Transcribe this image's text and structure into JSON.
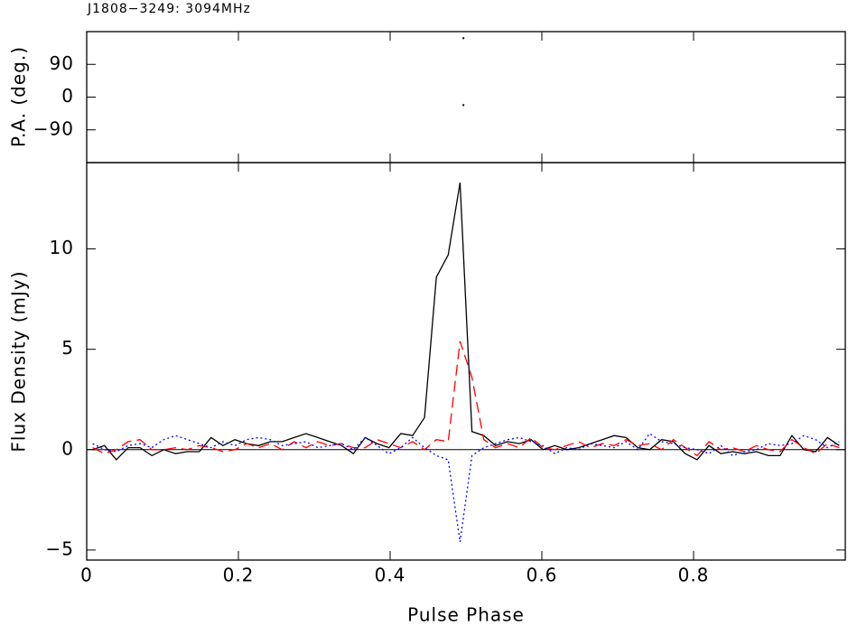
{
  "chart_data": [
    {
      "type": "scatter",
      "title": "J1808−3249: 3094MHz",
      "ylabel": "P.A. (deg.)",
      "x": [
        0.4966,
        0.4966
      ],
      "values": [
        -22,
        162
      ],
      "color": "#000000",
      "xlim": [
        0,
        1
      ],
      "ylim": [
        -180,
        180
      ],
      "yticks": [
        {
          "value": -90,
          "label": "−90"
        },
        0,
        90
      ]
    },
    {
      "type": "line",
      "xlabel": "Pulse Phase",
      "ylabel": "Flux Density (mJy)",
      "xlim": [
        0,
        1
      ],
      "xticks": [
        0,
        0.2,
        0.4,
        0.6,
        0.8
      ],
      "ylim": [
        -5.5,
        14.3
      ],
      "yticks": [
        {
          "value": -5,
          "label": "−5"
        },
        0,
        5,
        10
      ],
      "zero_line": true,
      "x": [
        0.0078,
        0.0234,
        0.0391,
        0.0547,
        0.0703,
        0.0859,
        0.1016,
        0.1172,
        0.1328,
        0.1484,
        0.1641,
        0.1797,
        0.1953,
        0.2109,
        0.2266,
        0.2422,
        0.2578,
        0.2734,
        0.2891,
        0.3047,
        0.3203,
        0.3359,
        0.3516,
        0.3672,
        0.3828,
        0.3984,
        0.4141,
        0.4297,
        0.4453,
        0.4609,
        0.4766,
        0.4922,
        0.5078,
        0.5234,
        0.5391,
        0.5547,
        0.5703,
        0.5859,
        0.6016,
        0.6172,
        0.6328,
        0.6484,
        0.6641,
        0.6797,
        0.6953,
        0.7109,
        0.7266,
        0.7422,
        0.7578,
        0.7734,
        0.7891,
        0.8047,
        0.8203,
        0.8359,
        0.8516,
        0.8672,
        0.8828,
        0.8984,
        0.9141,
        0.9297,
        0.9453,
        0.9609,
        0.9766,
        0.9922
      ],
      "series": [
        {
          "color": "#000000",
          "style": "solid",
          "values": [
            0.0,
            0.2,
            -0.5,
            0.1,
            0.1,
            -0.3,
            0.0,
            -0.2,
            -0.1,
            -0.1,
            0.6,
            0.2,
            0.5,
            0.3,
            0.2,
            0.4,
            0.4,
            0.6,
            0.8,
            0.6,
            0.4,
            0.2,
            -0.2,
            0.6,
            0.3,
            0.1,
            0.8,
            0.7,
            1.6,
            8.6,
            9.7,
            13.3,
            0.9,
            0.7,
            0.2,
            0.4,
            0.3,
            0.5,
            0.0,
            0.2,
            0.0,
            0.1,
            0.3,
            0.5,
            0.7,
            0.6,
            0.1,
            0.0,
            0.5,
            0.4,
            -0.2,
            -0.5,
            0.2,
            -0.2,
            -0.1,
            -0.2,
            -0.1,
            -0.3,
            -0.3,
            0.7,
            0.0,
            -0.1,
            0.6,
            0.2
          ]
        },
        {
          "color": "#ff0000",
          "style": "dashed",
          "values": [
            0.1,
            -0.2,
            0.0,
            0.4,
            0.5,
            0.0,
            0.0,
            0.1,
            0.0,
            0.2,
            0.1,
            -0.1,
            0.0,
            0.3,
            0.1,
            0.3,
            0.0,
            0.4,
            0.1,
            0.4,
            0.2,
            0.3,
            0.1,
            0.1,
            0.5,
            0.3,
            0.1,
            0.4,
            0.0,
            0.5,
            0.4,
            5.4,
            3.6,
            0.5,
            0.1,
            0.3,
            0.1,
            0.6,
            0.1,
            0.0,
            0.2,
            0.4,
            0.1,
            0.3,
            0.2,
            0.5,
            0.2,
            0.3,
            0.0,
            0.5,
            0.1,
            -0.3,
            0.4,
            0.0,
            0.1,
            -0.1,
            0.2,
            0.0,
            -0.1,
            0.5,
            0.1,
            -0.2,
            0.3,
            0.1
          ]
        },
        {
          "color": "#0000ff",
          "style": "dotted",
          "values": [
            0.3,
            0.0,
            -0.1,
            0.2,
            0.3,
            0.1,
            0.5,
            0.7,
            0.5,
            0.3,
            0.1,
            0.4,
            0.2,
            0.5,
            0.6,
            0.5,
            0.2,
            0.3,
            0.4,
            0.1,
            0.2,
            0.3,
            0.0,
            0.6,
            0.2,
            -0.2,
            0.1,
            0.6,
            0.1,
            -0.3,
            -0.5,
            -4.6,
            -0.3,
            0.1,
            0.3,
            0.5,
            0.6,
            0.4,
            0.2,
            -0.2,
            0.1,
            0.0,
            0.3,
            0.2,
            0.1,
            0.4,
            0.0,
            0.8,
            0.4,
            0.3,
            0.1,
            0.0,
            -0.2,
            0.2,
            -0.3,
            -0.1,
            0.0,
            0.3,
            0.2,
            0.3,
            0.7,
            0.5,
            0.1,
            0.4
          ]
        }
      ]
    }
  ]
}
